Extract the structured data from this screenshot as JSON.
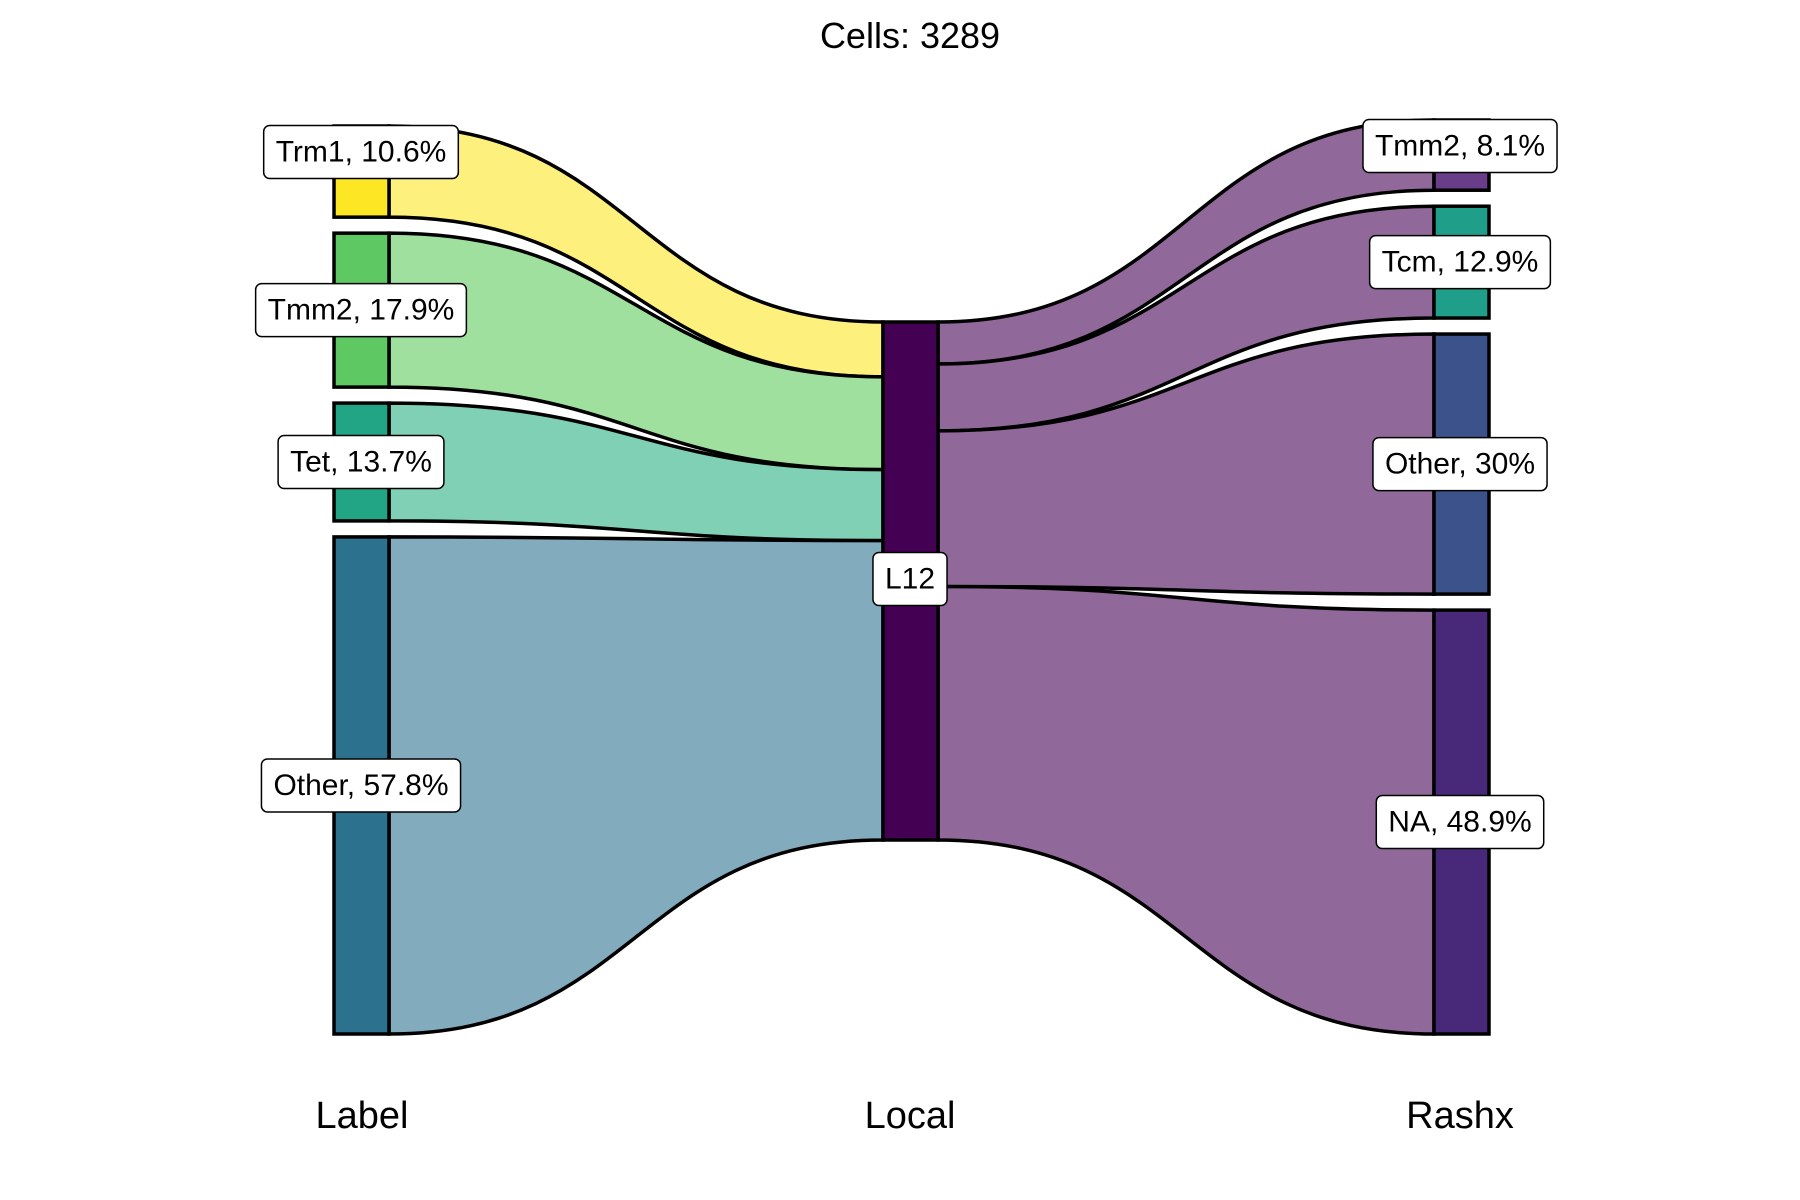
{
  "chart_data": {
    "type": "sankey",
    "title": "Cells:  3289",
    "axes": [
      "Label",
      "Local",
      "Rashx"
    ],
    "left_nodes": [
      {
        "name": "Trm1",
        "label": "Trm1, 10.6%",
        "pct": 10.6,
        "node_color": "#fde725",
        "flow_color": "#fdf07c"
      },
      {
        "name": "Tmm2",
        "label": "Tmm2, 17.9%",
        "pct": 17.9,
        "node_color": "#5ec962",
        "flow_color": "#a0e09e"
      },
      {
        "name": "Tet",
        "label": "Tet, 13.7%",
        "pct": 13.7,
        "node_color": "#21a585",
        "flow_color": "#7fd0b5"
      },
      {
        "name": "Other",
        "label": "Other, 57.8%",
        "pct": 57.8,
        "node_color": "#2c728e",
        "flow_color": "#83abbe"
      }
    ],
    "middle_nodes": [
      {
        "name": "L12",
        "label": "L12",
        "pct": 100,
        "node_color": "#440154"
      }
    ],
    "right_nodes": [
      {
        "name": "Tmm2",
        "label": "Tmm2, 8.1%",
        "pct": 8.1,
        "node_color": "#6a3d8a"
      },
      {
        "name": "Tcm",
        "label": "Tcm, 12.9%",
        "pct": 12.9,
        "node_color": "#1f9e89"
      },
      {
        "name": "Other",
        "label": "Other, 30%",
        "pct": 30,
        "node_color": "#3b528b"
      },
      {
        "name": "NA",
        "label": "NA, 48.9%",
        "pct": 48.9,
        "node_color": "#482878"
      }
    ],
    "right_flow_color": "#91689a"
  }
}
